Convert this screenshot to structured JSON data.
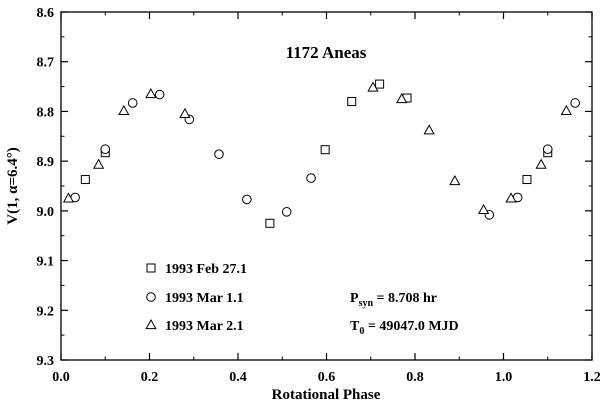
{
  "chart_data": {
    "type": "scatter",
    "title": "1172 Aneas",
    "xlabel": "Rotational Phase",
    "ylabel": "V(1, α=6.4°)",
    "xlim": [
      0.0,
      1.2
    ],
    "ylim": [
      8.6,
      9.3
    ],
    "y_inverted": true,
    "x_ticks": [
      "0.0",
      "0.2",
      "0.4",
      "0.6",
      "0.8",
      "1.0",
      "1.2"
    ],
    "y_ticks": [
      "8.6",
      "8.7",
      "8.8",
      "8.9",
      "9.0",
      "9.1",
      "9.2",
      "9.3"
    ],
    "grid": false,
    "legend_position": "bottom-left",
    "series": [
      {
        "name": "1993 Feb 27.1",
        "marker": "square",
        "points": [
          {
            "x": 0.055,
            "y": 8.937
          },
          {
            "x": 0.1,
            "y": 8.883
          },
          {
            "x": 0.472,
            "y": 9.025
          },
          {
            "x": 0.597,
            "y": 8.877
          },
          {
            "x": 0.657,
            "y": 8.78
          },
          {
            "x": 0.72,
            "y": 8.745
          },
          {
            "x": 0.782,
            "y": 8.773
          },
          {
            "x": 1.053,
            "y": 8.937
          },
          {
            "x": 1.1,
            "y": 8.883
          }
        ]
      },
      {
        "name": "1993 Mar 1.1",
        "marker": "circle",
        "points": [
          {
            "x": 0.032,
            "y": 8.973
          },
          {
            "x": 0.1,
            "y": 8.876
          },
          {
            "x": 0.162,
            "y": 8.783
          },
          {
            "x": 0.223,
            "y": 8.766
          },
          {
            "x": 0.29,
            "y": 8.816
          },
          {
            "x": 0.357,
            "y": 8.886
          },
          {
            "x": 0.42,
            "y": 8.977
          },
          {
            "x": 0.51,
            "y": 9.002
          },
          {
            "x": 0.565,
            "y": 8.934
          },
          {
            "x": 0.968,
            "y": 9.008
          },
          {
            "x": 1.032,
            "y": 8.973
          },
          {
            "x": 1.1,
            "y": 8.876
          },
          {
            "x": 1.162,
            "y": 8.783
          }
        ]
      },
      {
        "name": "1993 Mar 2.1",
        "marker": "triangle",
        "points": [
          {
            "x": 0.017,
            "y": 8.975
          },
          {
            "x": 0.085,
            "y": 8.907
          },
          {
            "x": 0.142,
            "y": 8.799
          },
          {
            "x": 0.203,
            "y": 8.765
          },
          {
            "x": 0.28,
            "y": 8.805
          },
          {
            "x": 0.705,
            "y": 8.752
          },
          {
            "x": 0.77,
            "y": 8.775
          },
          {
            "x": 0.832,
            "y": 8.838
          },
          {
            "x": 0.89,
            "y": 8.94
          },
          {
            "x": 0.955,
            "y": 8.998
          },
          {
            "x": 1.017,
            "y": 8.975
          },
          {
            "x": 1.085,
            "y": 8.907
          },
          {
            "x": 1.142,
            "y": 8.799
          }
        ]
      }
    ],
    "annotations": [
      {
        "id": "psyn",
        "main": "P",
        "sub": "syn",
        "rest": " = 8.708 hr"
      },
      {
        "id": "t0",
        "main": "T",
        "sub": "0",
        "rest": " = 49047.0 MJD"
      }
    ]
  }
}
